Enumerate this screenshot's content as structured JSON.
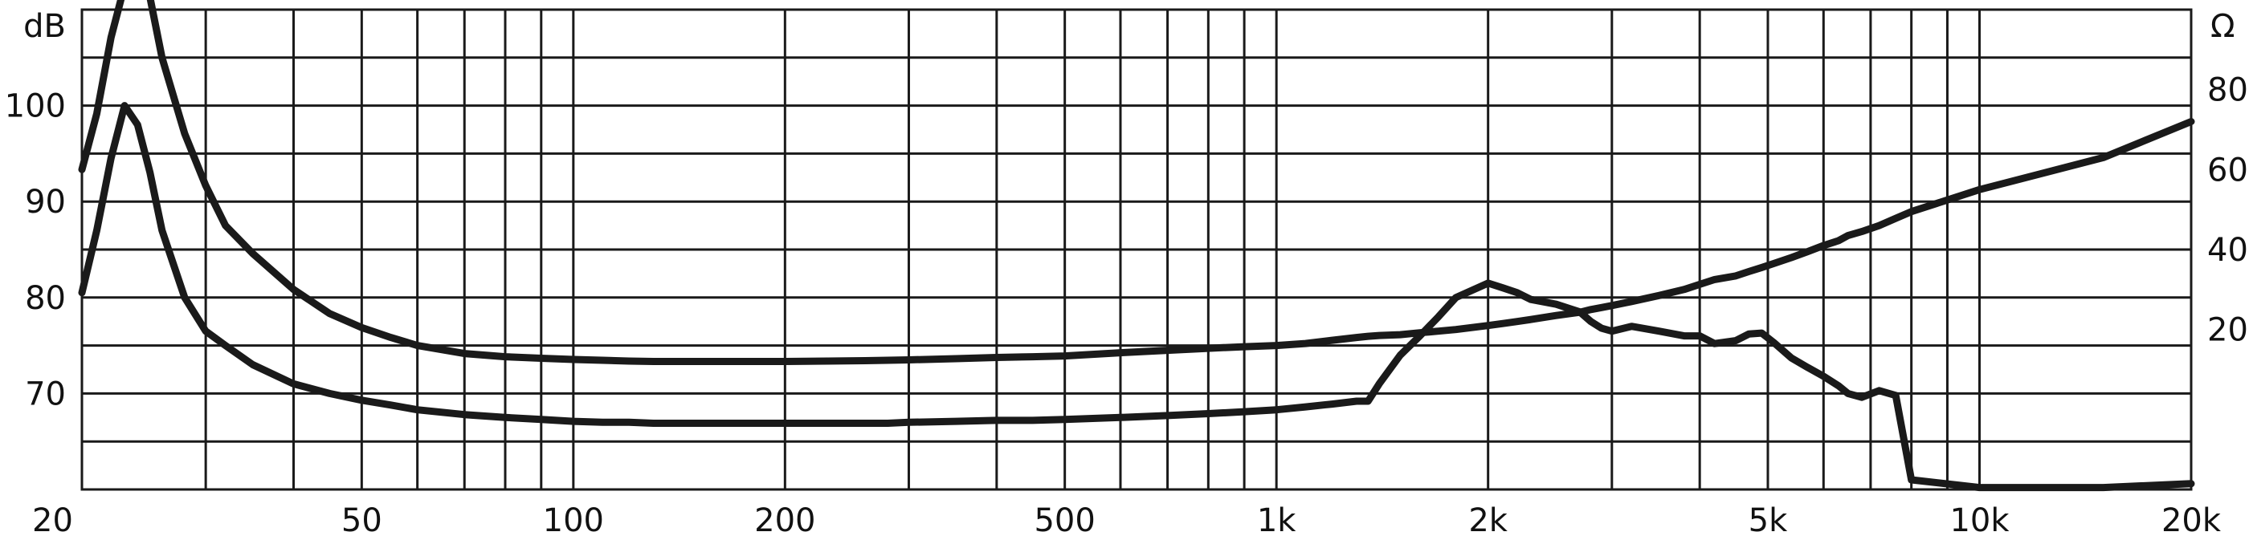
{
  "chart_data": {
    "type": "line",
    "title": "",
    "xlabel": "",
    "ylabel": "dB",
    "y2label": "Ω",
    "x_scale": "log",
    "xlim": [
      20,
      20000
    ],
    "ylim": [
      60,
      110
    ],
    "y2lim": [
      -20,
      100
    ],
    "grid": true,
    "x_ticks": [
      {
        "value": 20,
        "label": "20"
      },
      {
        "value": 50,
        "label": "50"
      },
      {
        "value": 100,
        "label": "100"
      },
      {
        "value": 200,
        "label": "200"
      },
      {
        "value": 500,
        "label": "500"
      },
      {
        "value": 1000,
        "label": "1k"
      },
      {
        "value": 2000,
        "label": "2k"
      },
      {
        "value": 5000,
        "label": "5k"
      },
      {
        "value": 10000,
        "label": "10k"
      },
      {
        "value": 20000,
        "label": "20k"
      }
    ],
    "y_ticks": [
      {
        "value": 70,
        "label": "70"
      },
      {
        "value": 80,
        "label": "80"
      },
      {
        "value": 90,
        "label": "90"
      },
      {
        "value": 100,
        "label": "100"
      }
    ],
    "y2_ticks": [
      {
        "value": 20,
        "label": "20"
      },
      {
        "value": 40,
        "label": "40"
      },
      {
        "value": 60,
        "label": "60"
      },
      {
        "value": 80,
        "label": "80"
      }
    ],
    "series": [
      {
        "axis": "left",
        "x": [
          20,
          21,
          22,
          23,
          24,
          25,
          26,
          28,
          30,
          32,
          35,
          40,
          45,
          50,
          55,
          60,
          70,
          80,
          90,
          100,
          110,
          120,
          130,
          140,
          150,
          160,
          180,
          200,
          230,
          260,
          280,
          300,
          350,
          400,
          450,
          500,
          600,
          700,
          800,
          900,
          1000,
          1100,
          1200,
          1300,
          1350,
          1400,
          1500,
          1600,
          1700,
          1800,
          2000,
          2100,
          2200,
          2300,
          2500,
          2700,
          2800,
          2900,
          3000,
          3200,
          3500,
          3800,
          4000,
          4200,
          4500,
          4700,
          4900,
          5100,
          5400,
          5700,
          6000,
          6300,
          6500,
          6800,
          7200,
          7600,
          8000,
          10000,
          15000,
          20000
        ],
        "y": [
          80.5,
          87,
          94.5,
          100,
          98,
          93,
          87,
          80,
          76.5,
          75,
          73,
          71,
          70,
          69.3,
          68.8,
          68.3,
          67.8,
          67.5,
          67.3,
          67.1,
          67.0,
          67.0,
          66.9,
          66.9,
          66.9,
          66.9,
          66.9,
          66.9,
          66.9,
          66.9,
          66.9,
          67.0,
          67.1,
          67.2,
          67.2,
          67.3,
          67.5,
          67.7,
          67.9,
          68.1,
          68.3,
          68.6,
          68.9,
          69.2,
          69.2,
          71,
          74,
          76,
          78,
          80,
          81.5,
          81,
          80.5,
          79.8,
          79.3,
          78.5,
          77.5,
          76.8,
          76.5,
          77,
          76.5,
          76,
          76,
          75.2,
          75.5,
          76.2,
          76.3,
          75.3,
          73.7,
          72.7,
          71.8,
          70.8,
          70.0,
          69.6,
          70.3,
          69.8,
          61,
          60.2,
          60.2,
          60.6
        ]
      },
      {
        "axis": "right",
        "x": [
          20,
          21,
          22,
          23,
          24,
          25,
          26,
          28,
          30,
          32,
          35,
          40,
          45,
          50,
          55,
          60,
          70,
          80,
          90,
          100,
          110,
          120,
          130,
          140,
          150,
          160,
          180,
          200,
          230,
          260,
          280,
          300,
          350,
          400,
          450,
          500,
          600,
          700,
          800,
          900,
          1000,
          1100,
          1200,
          1300,
          1350,
          1400,
          1500,
          1600,
          1700,
          1800,
          2000,
          2100,
          2200,
          2300,
          2500,
          2700,
          2800,
          2900,
          3000,
          3200,
          3500,
          3800,
          4000,
          4200,
          4500,
          4700,
          4900,
          5100,
          5400,
          5700,
          6000,
          6300,
          6500,
          6800,
          7200,
          7600,
          8000,
          10000,
          15000,
          20000
        ],
        "y": [
          60,
          74,
          93,
          106,
          109,
          103,
          88,
          69,
          56,
          46,
          39,
          30,
          24,
          20.5,
          18,
          16,
          14,
          13.2,
          12.8,
          12.5,
          12.3,
          12.1,
          12.0,
          12.0,
          12.0,
          12.0,
          12.0,
          12.0,
          12.1,
          12.2,
          12.3,
          12.4,
          12.7,
          13.0,
          13.2,
          13.4,
          14.2,
          14.8,
          15.3,
          15.7,
          16.0,
          16.5,
          17.3,
          18,
          18.3,
          18.5,
          18.7,
          19.2,
          19.6,
          20,
          21,
          21.5,
          22,
          22.5,
          23.5,
          24.3,
          25,
          25.5,
          26,
          27,
          28.5,
          30,
          31.3,
          32.5,
          33.4,
          34.5,
          35.5,
          36.5,
          38,
          39.5,
          41,
          42.2,
          43.5,
          44.5,
          46,
          47.8,
          49.5,
          55,
          63,
          72
        ]
      }
    ]
  }
}
